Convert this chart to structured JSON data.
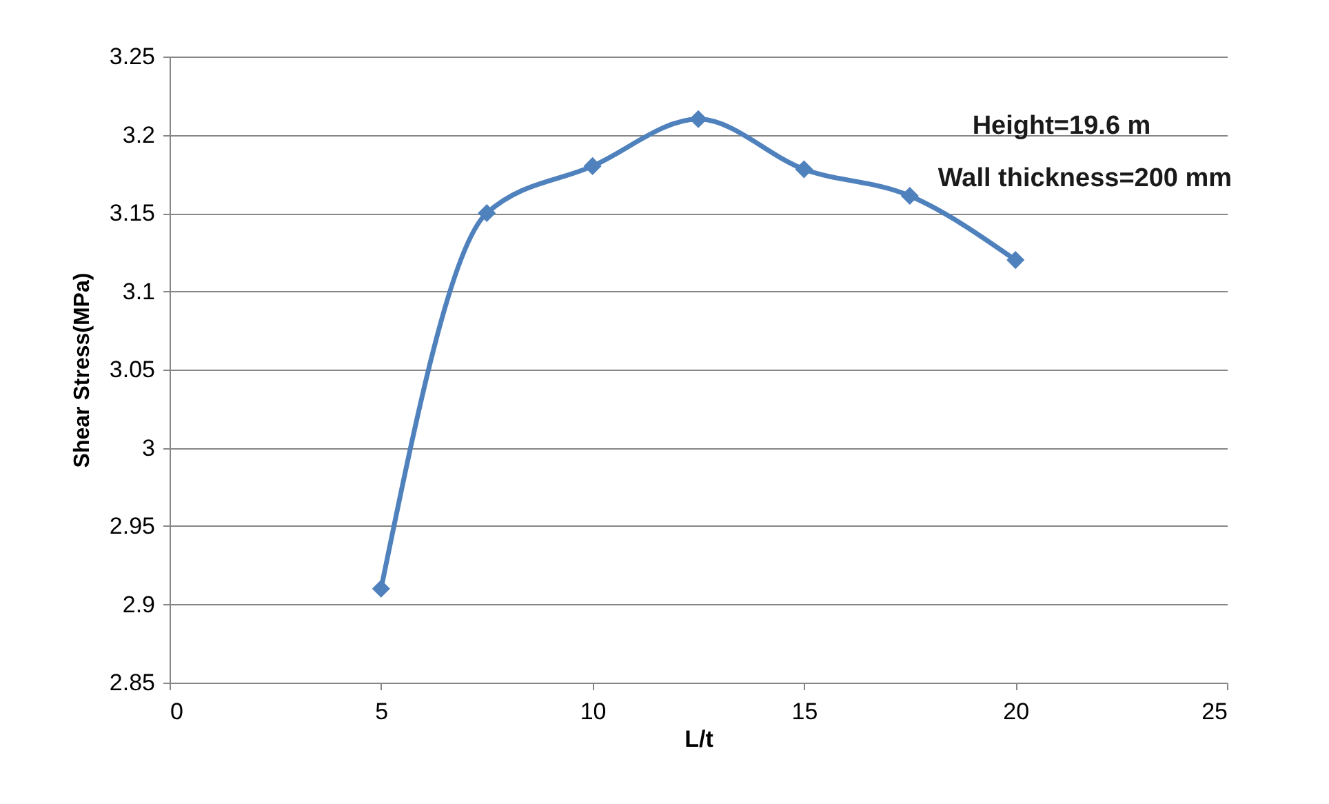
{
  "chart_data": {
    "type": "line",
    "xlabel": "L/t",
    "ylabel": "Shear Stress(MPa)",
    "x": [
      5,
      7.5,
      10,
      12.5,
      15,
      17.5,
      20
    ],
    "series": [
      {
        "color": "#4f81bd",
        "values": [
          2.91,
          3.15,
          3.18,
          3.21,
          3.178,
          3.161,
          3.12
        ]
      }
    ],
    "xlim": [
      0,
      25
    ],
    "xticks": [
      0,
      5,
      10,
      15,
      20,
      25
    ],
    "ylim": [
      2.85,
      3.25
    ],
    "yticks": [
      2.85,
      {
        "value": 2.9,
        "label": "2.9"
      },
      2.95,
      {
        "value": 3,
        "label": "3"
      },
      3.05,
      {
        "value": 3.1,
        "label": "3.1"
      },
      3.15,
      {
        "value": 3.2,
        "label": "3.2"
      },
      3.25
    ],
    "grid": "y",
    "marker": "diamond",
    "line_style": "solid",
    "annotations": [
      "Height=19.6 m",
      "Wall thickness=200 mm"
    ]
  }
}
